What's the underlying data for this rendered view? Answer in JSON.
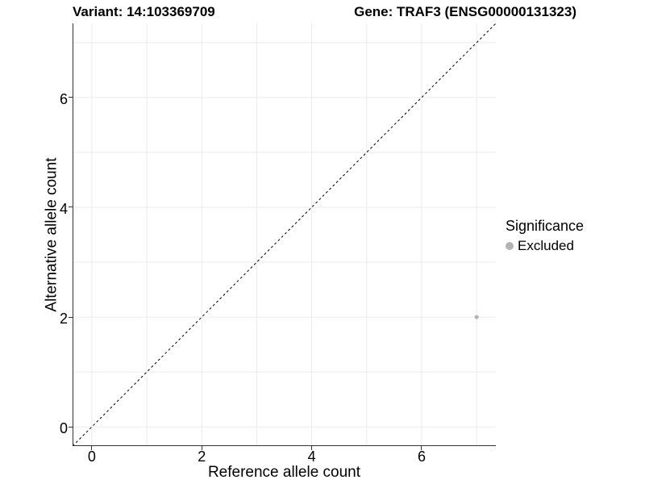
{
  "title": {
    "variant": "Variant: 14:103369709",
    "gene": "Gene: TRAF3 (ENSG00000131323)"
  },
  "chart_data": {
    "type": "scatter",
    "xlabel": "Reference allele count",
    "ylabel": "Alternative allele count",
    "xlim": [
      -0.35,
      7.35
    ],
    "ylim": [
      -0.35,
      7.35
    ],
    "xticks": [
      0,
      2,
      4,
      6
    ],
    "yticks": [
      0,
      2,
      4,
      6
    ],
    "gridlines_x": [
      0,
      1,
      2,
      3,
      4,
      5,
      6,
      7
    ],
    "gridlines_y": [
      0,
      1,
      2,
      3,
      4,
      5,
      6,
      7
    ],
    "grid": true,
    "grid_color": "#ebebeb",
    "axis_color": "#333333",
    "background": "#ffffff",
    "identity_line": {
      "slope": 1,
      "intercept": 0,
      "style": "dashed",
      "color": "#000000"
    },
    "series": [
      {
        "name": "Excluded",
        "color": "#b3b3b3",
        "points": [
          {
            "x": 7,
            "y": 2
          }
        ]
      }
    ],
    "legend": {
      "title": "Significance",
      "position": "right",
      "items": [
        {
          "label": "Excluded",
          "color": "#b3b3b3",
          "marker": "circle"
        }
      ]
    }
  }
}
